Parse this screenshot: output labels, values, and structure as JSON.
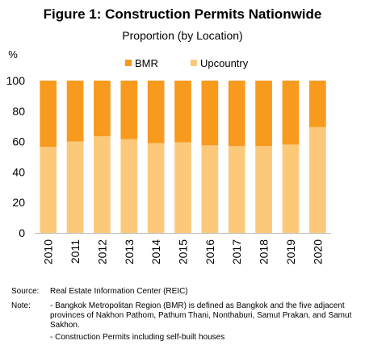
{
  "chart_data": {
    "type": "bar",
    "stacked": true,
    "title": "Figure 1: Construction Permits Nationwide",
    "subtitle": "Proportion (by Location)",
    "ylabel": "%",
    "ylim": [
      0,
      100
    ],
    "yticks": [
      0,
      20,
      40,
      60,
      80,
      100
    ],
    "categories": [
      "2010",
      "2011",
      "2012",
      "2013",
      "2014",
      "2015",
      "2016",
      "2017",
      "2018",
      "2019",
      "2020"
    ],
    "series": [
      {
        "name": "Upcountry",
        "color": "#fcc97b",
        "values": [
          56.5,
          60,
          63.5,
          61.5,
          59,
          59.5,
          57.5,
          57,
          57,
          58,
          69.5
        ]
      },
      {
        "name": "BMR",
        "color": "#f79a1e",
        "values": [
          43.5,
          40,
          36.5,
          38.5,
          41,
          40.5,
          42.5,
          43,
          43,
          42,
          30.5
        ]
      }
    ],
    "legend_order": [
      "BMR",
      "Upcountry"
    ],
    "legend_position": "top-left",
    "grid": false
  },
  "source": {
    "label": "Source:",
    "text": "Real Estate Information Center (REIC)"
  },
  "note": {
    "label": "Note:",
    "items": [
      "- Bangkok Metropolitan Region (BMR) is defined as Bangkok and the five adjacent provinces of Nakhon Pathom, Pathum Thani, Nonthaburi, Samut Prakan, and Samut Sakhon.",
      "- Construction Permits including self-built houses"
    ]
  }
}
